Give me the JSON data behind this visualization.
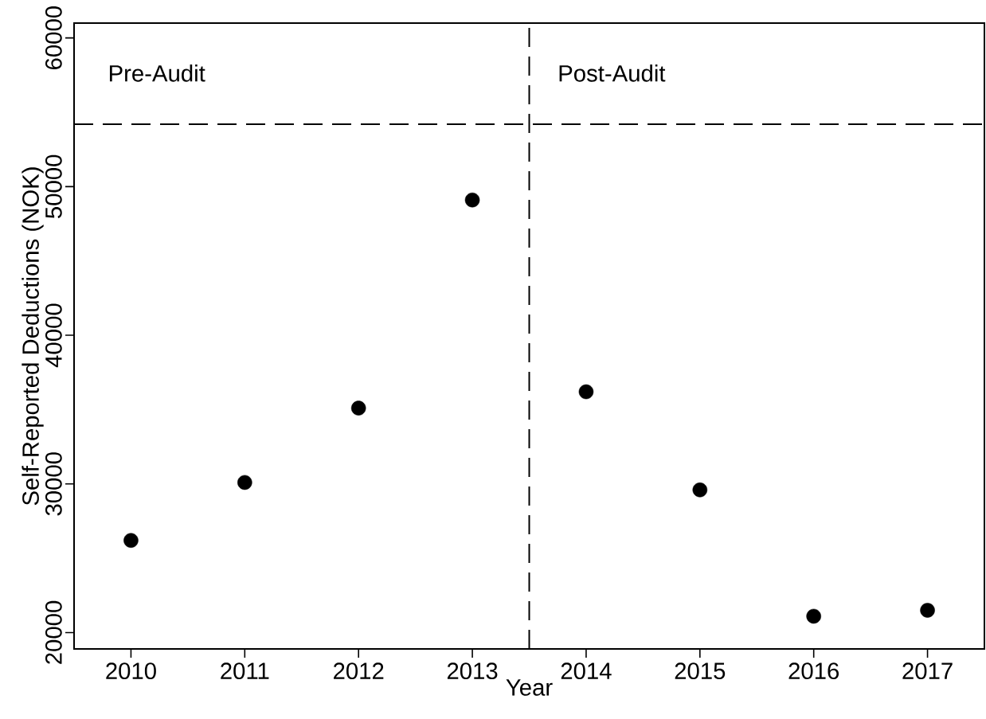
{
  "chart_data": {
    "type": "scatter",
    "xlabel": "Year",
    "ylabel": "Self-Reported Deductions (NOK)",
    "x": [
      2010,
      2011,
      2012,
      2013,
      2014,
      2015,
      2016,
      2017
    ],
    "values": [
      26200,
      30100,
      35100,
      49100,
      36200,
      29600,
      21100,
      21500
    ],
    "color": "#000000",
    "marker": "circle",
    "xlim": [
      2009.5,
      2017.5
    ],
    "xticks": [
      2010,
      2011,
      2012,
      2013,
      2014,
      2015,
      2016,
      2017
    ],
    "ylim": [
      18900,
      61000
    ],
    "yticks": [
      20000,
      30000,
      40000,
      50000,
      60000
    ],
    "ref_lines": [
      {
        "axis": "x",
        "value": 2013.5,
        "line_style": "dashed"
      },
      {
        "axis": "y",
        "value": 54200,
        "line_style": "dashed"
      }
    ],
    "annotations": [
      "Pre-Audit",
      "Post-Audit"
    ]
  }
}
